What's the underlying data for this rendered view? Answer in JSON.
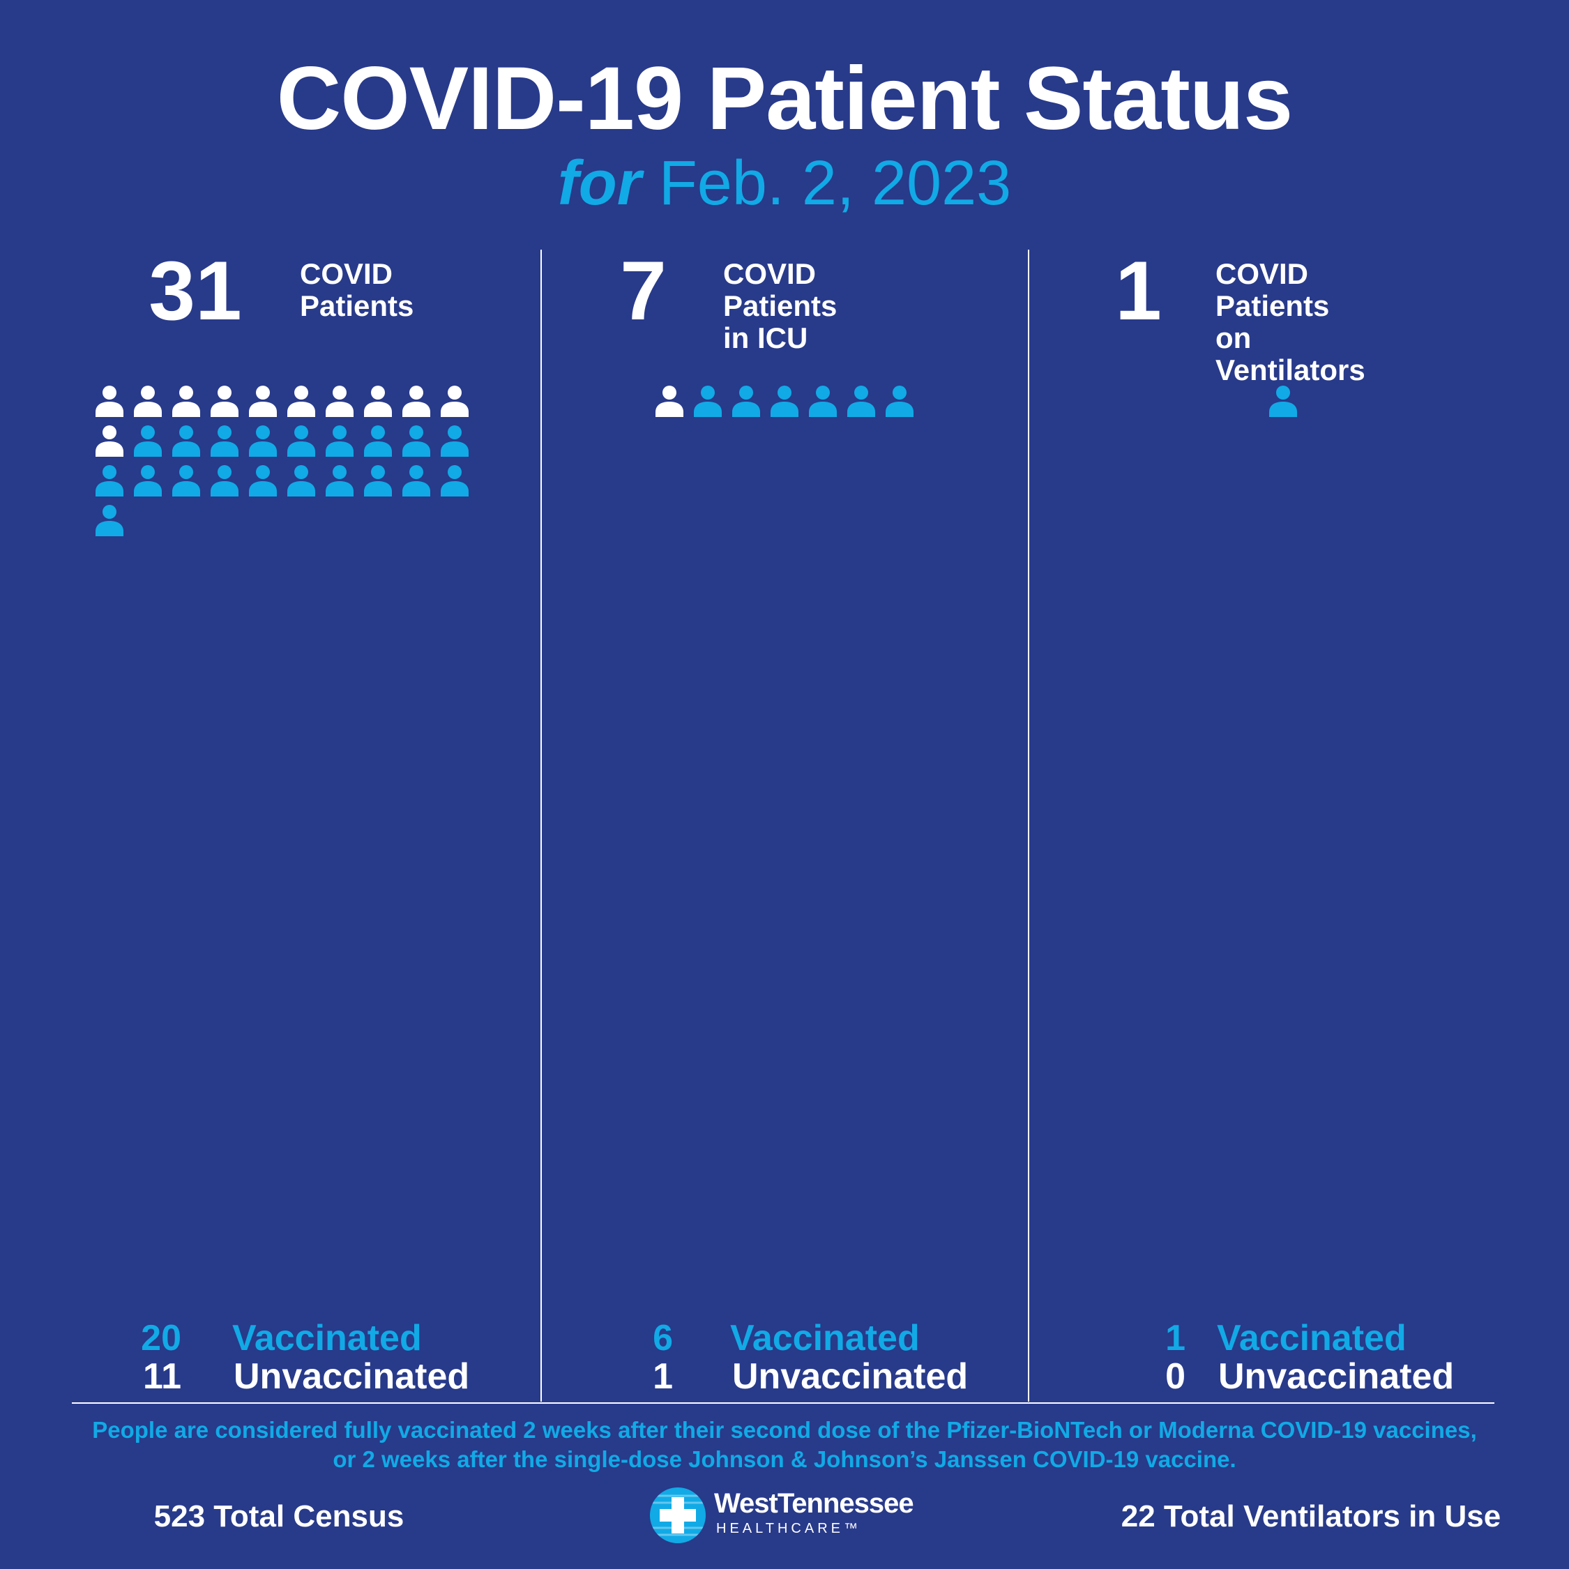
{
  "header": {
    "title": "COVID-19 Patient Status",
    "subtitle_for": "for",
    "subtitle_date": "Feb. 2, 2023"
  },
  "colors": {
    "background": "#283a8a",
    "vaccinated": "#11aae6",
    "unvaccinated": "#ffffff"
  },
  "panels": [
    {
      "count": "31",
      "label_line1": "COVID",
      "label_line2": "Patients",
      "vaccinated_count": "20",
      "vaccinated_label": "Vaccinated",
      "unvaccinated_count": "11",
      "unvaccinated_label": "Unvaccinated"
    },
    {
      "count": "7",
      "label_line1": "COVID Patients",
      "label_line2": "in ICU",
      "vaccinated_count": "6",
      "vaccinated_label": "Vaccinated",
      "unvaccinated_count": "1",
      "unvaccinated_label": "Unvaccinated"
    },
    {
      "count": "1",
      "label_line1": "COVID Patients",
      "label_line2": "on Ventilators",
      "vaccinated_count": "1",
      "vaccinated_label": "Vaccinated",
      "unvaccinated_count": "0",
      "unvaccinated_label": "Unvaccinated"
    }
  ],
  "chart_data": {
    "type": "bar",
    "categories": [
      "COVID Patients",
      "COVID Patients in ICU",
      "COVID Patients on Ventilators"
    ],
    "series": [
      {
        "name": "Unvaccinated",
        "values": [
          11,
          1,
          0
        ]
      },
      {
        "name": "Vaccinated",
        "values": [
          20,
          6,
          1
        ]
      }
    ],
    "totals": [
      31,
      7,
      1
    ]
  },
  "footnote": {
    "line1": "People are considered fully vaccinated 2 weeks after their second dose of the Pfizer-BioNTech or Moderna COVID-19 vaccines,",
    "line2": "or 2 weeks after the single-dose Johnson & Johnson’s Janssen COVID-19 vaccine."
  },
  "footer": {
    "census": "523 Total Census",
    "ventilators": "22 Total Ventilators in Use",
    "logo_name": "WestTennessee",
    "logo_sub": "HEALTHCARE™"
  }
}
